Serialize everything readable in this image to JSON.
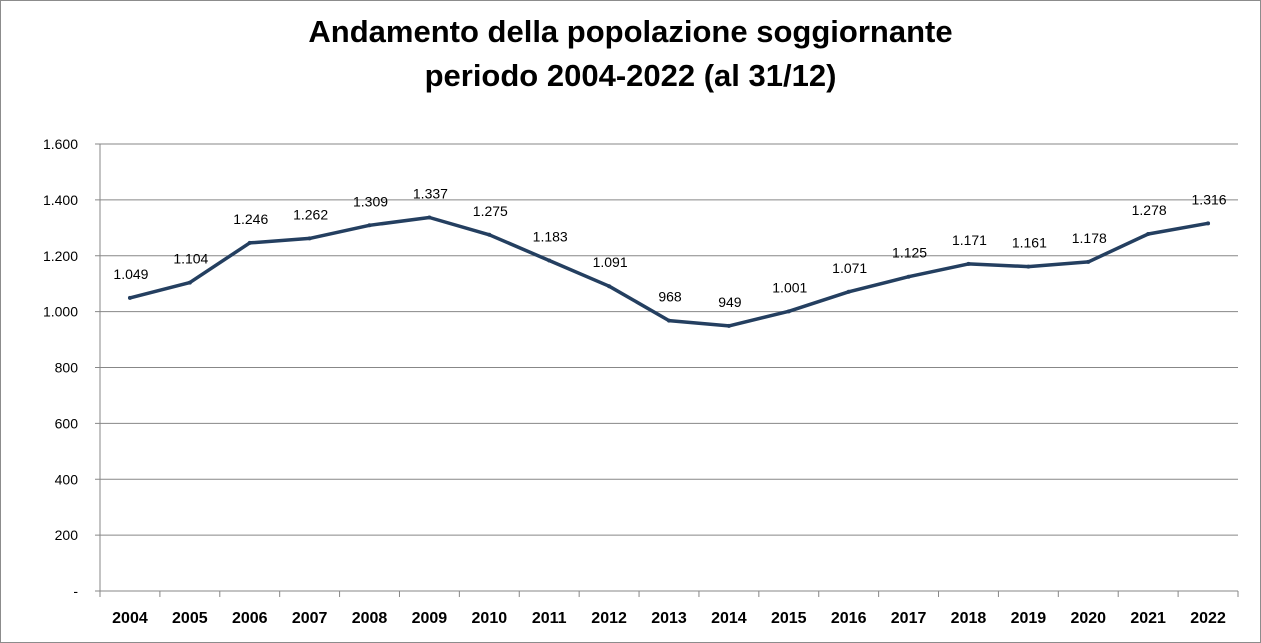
{
  "chart_data": {
    "type": "line",
    "title_line1": "Andamento della popolazione soggiornante",
    "title_line2": "periodo 2004-2022 (al 31/12)",
    "categories": [
      "2004",
      "2005",
      "2006",
      "2007",
      "2008",
      "2009",
      "2010",
      "2011",
      "2012",
      "2013",
      "2014",
      "2015",
      "2016",
      "2017",
      "2018",
      "2019",
      "2020",
      "2021",
      "2022"
    ],
    "values": [
      1049,
      1104,
      1246,
      1262,
      1309,
      1337,
      1275,
      1183,
      1091,
      968,
      949,
      1001,
      1071,
      1125,
      1171,
      1161,
      1178,
      1278,
      1316
    ],
    "value_labels": [
      "1.049",
      "1.104",
      "1.246",
      "1.262",
      "1.309",
      "1.337",
      "1.275",
      "1.183",
      "1.091",
      "968",
      "949",
      "1.001",
      "1.071",
      "1.125",
      "1.171",
      "1.161",
      "1.178",
      "1.278",
      "1.316"
    ],
    "y_ticks": [
      0,
      200,
      400,
      600,
      800,
      1000,
      1200,
      1400,
      1600
    ],
    "y_tick_labels": [
      "-",
      "200",
      "400",
      "600",
      "800",
      "1.000",
      "1.200",
      "1.400",
      "1.600"
    ],
    "ylim": [
      0,
      1600
    ],
    "xlabel": "",
    "ylabel": "",
    "grid": true,
    "legend": "none",
    "line_color": "#243f60"
  }
}
